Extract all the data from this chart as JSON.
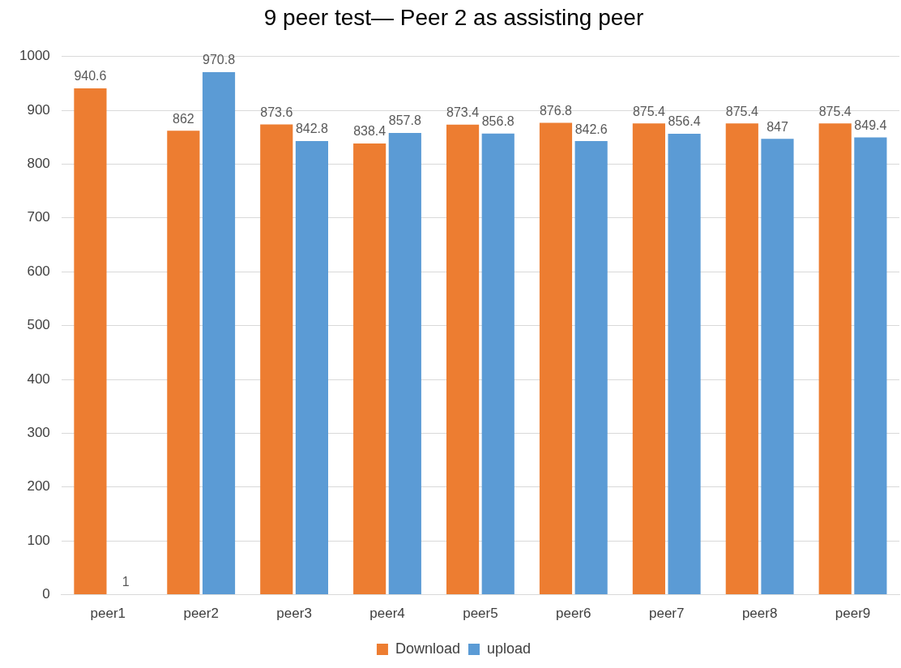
{
  "chart_data": {
    "type": "bar",
    "title": "9 peer test— Peer 2 as assisting peer",
    "categories": [
      "peer1",
      "peer2",
      "peer3",
      "peer4",
      "peer5",
      "peer6",
      "peer7",
      "peer8",
      "peer9"
    ],
    "series": [
      {
        "name": "Download",
        "color": "#ed7d31",
        "values": [
          940.6,
          862,
          873.6,
          838.4,
          873.4,
          876.8,
          875.4,
          875.4,
          875.4
        ]
      },
      {
        "name": "upload",
        "color": "#5b9bd5",
        "values": [
          1,
          970.8,
          842.8,
          857.8,
          856.8,
          842.6,
          856.4,
          847,
          849.4
        ]
      }
    ],
    "ylim": [
      0,
      1000
    ],
    "yticks": [
      0,
      100,
      200,
      300,
      400,
      500,
      600,
      700,
      800,
      900,
      1000
    ],
    "grid": "y",
    "legend": "bottom",
    "data_labels": true
  }
}
